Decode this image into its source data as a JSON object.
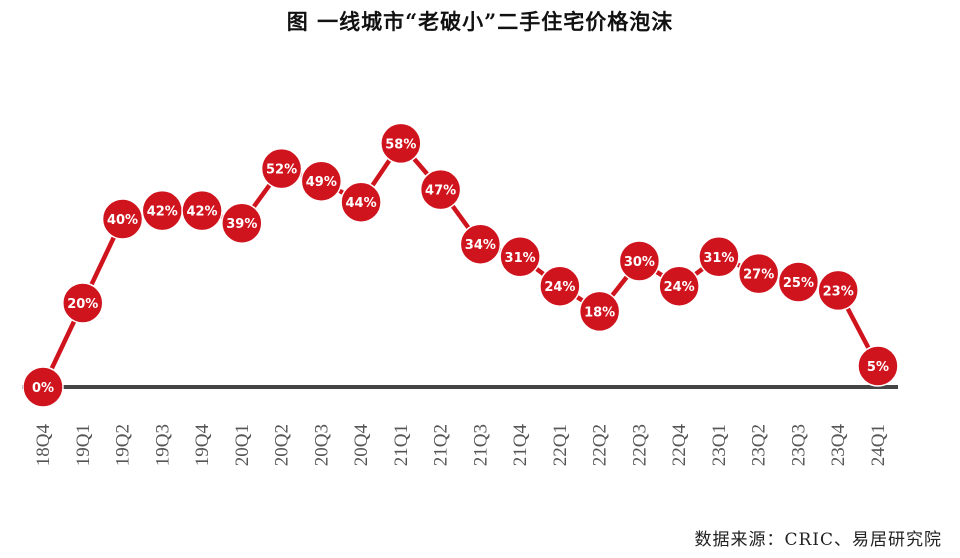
{
  "title": "图 一线城市“老破小”二手住宅价格泡沫",
  "source": "数据来源：CRIC、易居研究院",
  "colors": {
    "marker": "#d0141e",
    "line": "#d0141e",
    "axis": "#444444",
    "label": "#ffffff"
  },
  "chart_data": {
    "type": "line",
    "title": "图 一线城市“老破小”二手住宅价格泡沫",
    "xlabel": "",
    "ylabel": "",
    "ylim": [
      0,
      70
    ],
    "grid": false,
    "legend": "none",
    "categories": [
      "18Q4",
      "19Q1",
      "19Q2",
      "19Q3",
      "19Q4",
      "20Q1",
      "20Q2",
      "20Q3",
      "20Q4",
      "21Q1",
      "21Q2",
      "21Q3",
      "21Q4",
      "22Q1",
      "22Q2",
      "22Q3",
      "22Q4",
      "23Q1",
      "23Q2",
      "23Q3",
      "23Q4",
      "24Q1"
    ],
    "values": [
      0,
      20,
      40,
      42,
      42,
      39,
      52,
      49,
      44,
      58,
      47,
      34,
      31,
      24,
      18,
      30,
      24,
      31,
      27,
      25,
      23,
      5
    ],
    "data_labels": [
      "0%",
      "20%",
      "40%",
      "42%",
      "42%",
      "39%",
      "52%",
      "49%",
      "44%",
      "58%",
      "47%",
      "34%",
      "31%",
      "24%",
      "18%",
      "30%",
      "24%",
      "31%",
      "27%",
      "25%",
      "23%",
      "5%"
    ]
  }
}
